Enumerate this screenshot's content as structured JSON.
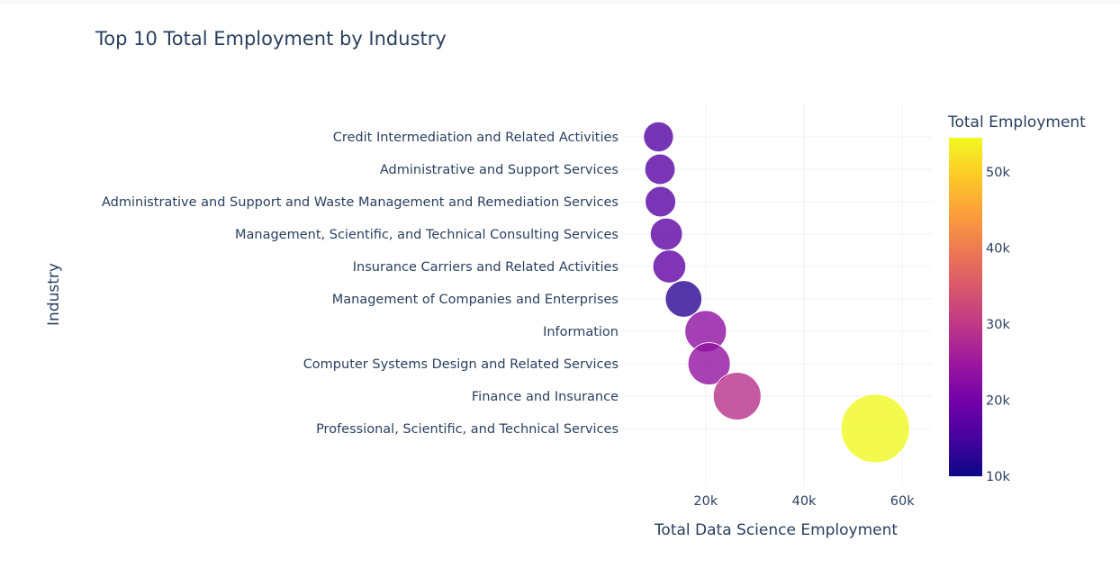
{
  "chart_data": {
    "type": "scatter",
    "title": "Top 10 Total Employment by Industry",
    "xlabel": "Total Data Science Employment",
    "ylabel": "Industry",
    "xlim": [
      3000,
      66000
    ],
    "x_ticks": [
      20000,
      40000,
      60000
    ],
    "x_tick_labels": [
      "20k",
      "40k",
      "60k"
    ],
    "grid": true,
    "colorbar": {
      "title": "Total Employment",
      "colorscale": "Plasma",
      "range": [
        10000,
        54500
      ],
      "ticks": [
        10000,
        20000,
        30000,
        40000,
        50000
      ],
      "tick_labels": [
        "10k",
        "20k",
        "30k",
        "40k",
        "50k"
      ]
    },
    "categories": [
      "Credit Intermediation and Related Activities",
      "Administrative and Support Services",
      "Administrative and Support and Waste Management and Remediation Services",
      "Management, Scientific, and Technical Consulting Services",
      "Insurance Carriers and Related Activities",
      "Management of Companies and Enterprises",
      "Information",
      "Computer Systems Design and Related Services",
      "Finance and Insurance",
      "Professional, Scientific, and Technical Services"
    ],
    "x": [
      10400,
      10700,
      10800,
      12000,
      12600,
      15500,
      20000,
      20700,
      26400,
      54500
    ],
    "marker_size": [
      10400,
      10700,
      10800,
      12000,
      12600,
      15500,
      20000,
      20700,
      26400,
      54500
    ],
    "color_value": [
      16500,
      16800,
      16900,
      17600,
      17900,
      12500,
      23200,
      23600,
      28800,
      54500
    ]
  }
}
